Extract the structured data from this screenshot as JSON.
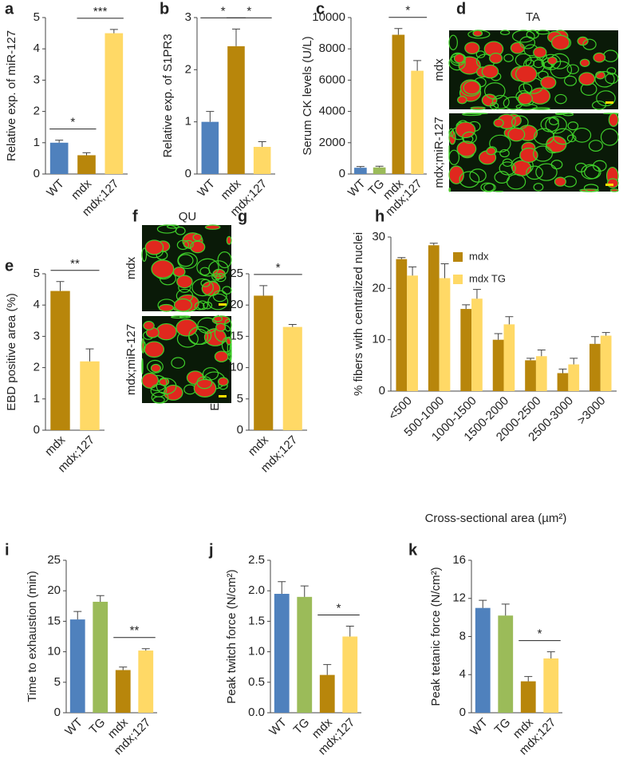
{
  "chart_data": [
    {
      "type": "bar",
      "panel": "a",
      "ylabel": "Relative exp. of miR-127",
      "categories": [
        "WT",
        "mdx",
        "mdx;127"
      ],
      "values": [
        1.0,
        0.6,
        4.5
      ],
      "errors": [
        0.08,
        0.08,
        0.12
      ],
      "colors": [
        "#4f81bd",
        "#b8860b",
        "#ffd966"
      ],
      "ylim": [
        0,
        5
      ],
      "yticks": [
        0,
        1,
        2,
        3,
        4,
        5
      ],
      "significance": [
        {
          "text": "*",
          "between": [
            "WT",
            "mdx"
          ]
        },
        {
          "text": "***",
          "between": [
            "mdx",
            "mdx;127"
          ]
        }
      ]
    },
    {
      "type": "bar",
      "panel": "b",
      "ylabel": "Relative exp. of S1PR3",
      "categories": [
        "WT",
        "mdx",
        "mdx;127"
      ],
      "values": [
        1.0,
        2.45,
        0.52
      ],
      "errors": [
        0.2,
        0.33,
        0.1
      ],
      "colors": [
        "#4f81bd",
        "#b8860b",
        "#ffd966"
      ],
      "ylim": [
        0,
        3
      ],
      "yticks": [
        0,
        1,
        2,
        3
      ],
      "significance": [
        {
          "text": "*",
          "between": [
            "WT",
            "mdx"
          ]
        },
        {
          "text": "*",
          "between": [
            "mdx",
            "mdx;127"
          ]
        }
      ]
    },
    {
      "type": "bar",
      "panel": "c",
      "ylabel": "Serum CK levels (U/L)",
      "categories": [
        "WT",
        "TG",
        "mdx",
        "mdx;127"
      ],
      "values": [
        400,
        420,
        8900,
        6600
      ],
      "errors": [
        80,
        80,
        400,
        650
      ],
      "colors": [
        "#4f81bd",
        "#9bbb59",
        "#b8860b",
        "#ffd966"
      ],
      "ylim": [
        0,
        10000
      ],
      "yticks": [
        0,
        2000,
        4000,
        6000,
        8000,
        10000
      ],
      "significance": [
        {
          "text": "*",
          "between": [
            "mdx",
            "mdx;127"
          ]
        }
      ]
    },
    {
      "type": "bar",
      "panel": "e",
      "ylabel": "EBD positive area (%)",
      "categories": [
        "mdx",
        "mdx;127"
      ],
      "values": [
        4.45,
        2.2
      ],
      "errors": [
        0.3,
        0.4
      ],
      "colors": [
        "#b8860b",
        "#ffd966"
      ],
      "ylim": [
        0,
        5
      ],
      "yticks": [
        0,
        1,
        2,
        3,
        4,
        5
      ],
      "significance": [
        {
          "text": "**",
          "between": [
            "mdx",
            "mdx;127"
          ]
        }
      ]
    },
    {
      "type": "bar",
      "panel": "g",
      "ylabel": "EBD positive area (%)",
      "categories": [
        "mdx",
        "mdx;127"
      ],
      "values": [
        21.5,
        16.5
      ],
      "errors": [
        1.6,
        0.4
      ],
      "colors": [
        "#b8860b",
        "#ffd966"
      ],
      "ylim": [
        0,
        25
      ],
      "yticks": [
        0,
        5,
        10,
        15,
        20,
        25
      ],
      "significance": [
        {
          "text": "*",
          "between": [
            "mdx",
            "mdx;127"
          ]
        }
      ]
    },
    {
      "type": "grouped_bar",
      "panel": "h",
      "ylabel": "% fibers with centralized nuclei",
      "xlabel": "Cross-sectional area (µm²)",
      "categories": [
        "<500",
        "500-1000",
        "1000-1500",
        "1500-2000",
        "2000-2500",
        "2500-3000",
        ">3000"
      ],
      "series": [
        {
          "name": "mdx",
          "color": "#b8860b",
          "values": [
            25.7,
            28.4,
            16,
            10,
            6,
            3.5,
            9.2
          ],
          "errors": [
            0.3,
            0.4,
            0.8,
            1.2,
            0.4,
            0.8,
            1.4
          ]
        },
        {
          "name": "mdx TG",
          "color": "#ffd966",
          "values": [
            22.5,
            22,
            18,
            13,
            6.8,
            5.2,
            10.8
          ],
          "errors": [
            1.7,
            2.8,
            1.8,
            1.5,
            1.2,
            1.2,
            0.6
          ]
        }
      ],
      "ylim": [
        0,
        30
      ],
      "yticks": [
        0,
        10,
        20,
        30
      ]
    },
    {
      "type": "bar",
      "panel": "i",
      "ylabel": "Time to exhaustion (min)",
      "categories": [
        "WT",
        "TG",
        "mdx",
        "mdx;127"
      ],
      "values": [
        15.3,
        18.2,
        7.0,
        10.2
      ],
      "errors": [
        1.3,
        1.0,
        0.5,
        0.3
      ],
      "colors": [
        "#4f81bd",
        "#9bbb59",
        "#b8860b",
        "#ffd966"
      ],
      "ylim": [
        0,
        25
      ],
      "yticks": [
        0,
        5,
        10,
        15,
        20,
        25
      ],
      "significance": [
        {
          "text": "**",
          "between": [
            "mdx",
            "mdx;127"
          ]
        }
      ]
    },
    {
      "type": "bar",
      "panel": "j",
      "ylabel": "Peak twitch force (N/cm²)",
      "categories": [
        "WT",
        "TG",
        "mdx",
        "mdx;127"
      ],
      "values": [
        1.95,
        1.9,
        0.62,
        1.25
      ],
      "errors": [
        0.2,
        0.18,
        0.17,
        0.17
      ],
      "colors": [
        "#4f81bd",
        "#9bbb59",
        "#b8860b",
        "#ffd966"
      ],
      "ylim": [
        0,
        2.5
      ],
      "yticks": [
        {
          "value": 0,
          "label": "0.0"
        },
        {
          "value": 0.5,
          "label": "0.5"
        },
        {
          "value": 1,
          "label": "1.0"
        },
        {
          "value": 1.5,
          "label": "1.5"
        },
        {
          "value": 2,
          "label": "2.0"
        },
        {
          "value": 2.5,
          "label": "2.5"
        }
      ],
      "significance": [
        {
          "text": "*",
          "between": [
            "mdx",
            "mdx;127"
          ]
        }
      ]
    },
    {
      "type": "bar",
      "panel": "k",
      "ylabel": "Peak tetanic force (N/cm²)",
      "categories": [
        "WT",
        "TG",
        "mdx",
        "mdx;127"
      ],
      "values": [
        11.0,
        10.2,
        3.3,
        5.7
      ],
      "errors": [
        0.8,
        1.2,
        0.5,
        0.7
      ],
      "colors": [
        "#4f81bd",
        "#9bbb59",
        "#b8860b",
        "#ffd966"
      ],
      "ylim": [
        0,
        16
      ],
      "yticks": [
        0,
        4,
        8,
        12,
        16
      ],
      "significance": [
        {
          "text": "*",
          "between": [
            "mdx",
            "mdx;127"
          ]
        }
      ]
    }
  ],
  "image_panels": [
    {
      "panel": "d",
      "title": "TA",
      "rows": [
        "mdx",
        "mdx;miR-127"
      ]
    },
    {
      "panel": "f",
      "title": "QU",
      "rows": [
        "mdx",
        "mdx;miR-127"
      ]
    }
  ]
}
